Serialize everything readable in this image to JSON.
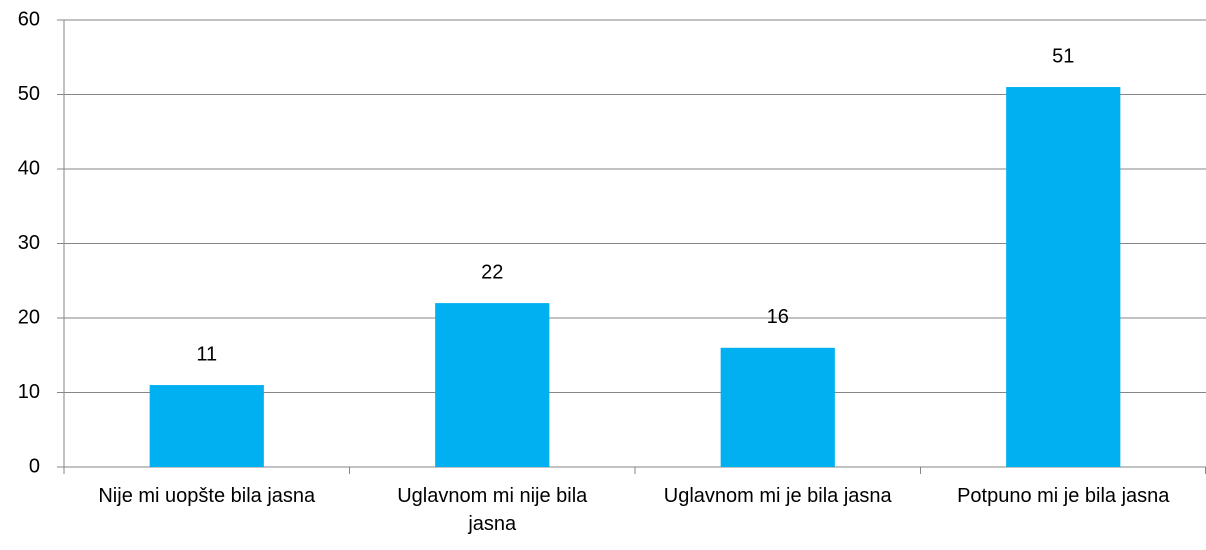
{
  "chart_data": {
    "type": "bar",
    "categories": [
      "Nije mi uopšte bila jasna",
      "Uglavnom mi nije bila jasna",
      "Uglavnom mi je bila jasna",
      "Potpuno mi je bila jasna"
    ],
    "values": [
      11,
      22,
      16,
      51
    ],
    "color": "#00b0f0",
    "ylim": [
      0,
      60
    ],
    "yticks": [
      0,
      10,
      20,
      30,
      40,
      50,
      60
    ],
    "grid": true
  }
}
